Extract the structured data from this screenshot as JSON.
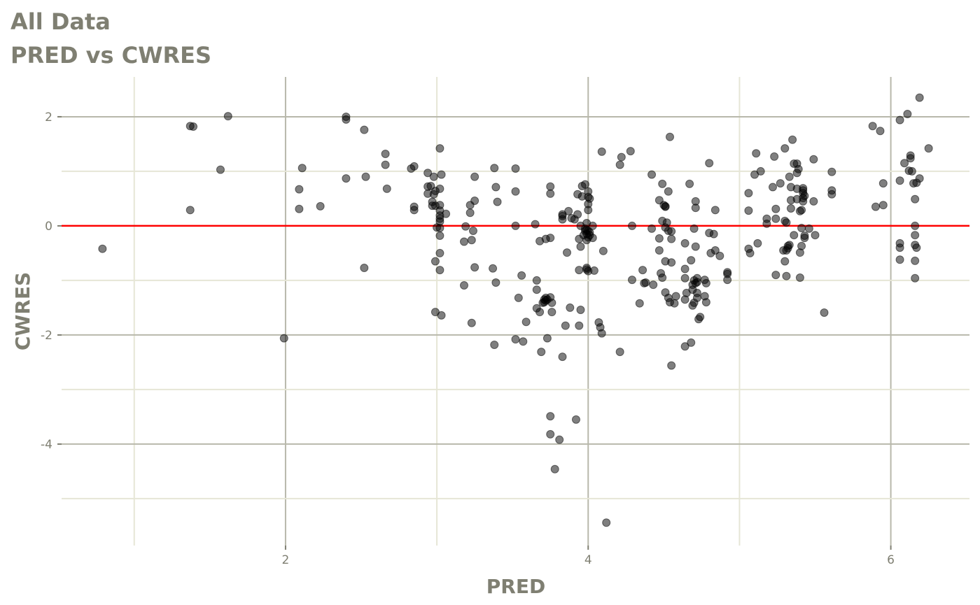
{
  "chart_data": {
    "type": "scatter",
    "title": "All Data",
    "subtitle": "PRED vs CWRES",
    "xlabel": "PRED",
    "ylabel": "CWRES",
    "xlim": [
      0.52,
      6.52
    ],
    "ylim": [
      -5.86,
      2.73
    ],
    "xticks": [
      2,
      4,
      6
    ],
    "yticks": [
      2,
      0,
      -2,
      -4
    ],
    "xtick_labels": [
      "2",
      "4",
      "6"
    ],
    "ytick_labels": [
      "2",
      "0",
      "-2",
      "-4"
    ],
    "grid": true,
    "reference_line": {
      "y": 0,
      "color": "#ff0000"
    },
    "colors": {
      "points": "#000000",
      "point_alpha": 0.5,
      "major_grid": "#b8b8ab",
      "minor_grid": "#e6e6d6",
      "text": "#7f7f72"
    },
    "points": [
      [
        0.79,
        -0.42
      ],
      [
        1.37,
        0.29
      ],
      [
        1.37,
        1.83
      ],
      [
        1.39,
        1.82
      ],
      [
        1.57,
        1.03
      ],
      [
        1.62,
        2.01
      ],
      [
        1.99,
        -2.06
      ],
      [
        2.09,
        0.67
      ],
      [
        2.09,
        0.31
      ],
      [
        2.11,
        1.06
      ],
      [
        2.23,
        0.36
      ],
      [
        2.4,
        0.87
      ],
      [
        2.4,
        1.95
      ],
      [
        2.4,
        2.0
      ],
      [
        2.52,
        -0.77
      ],
      [
        2.52,
        1.76
      ],
      [
        2.53,
        0.9
      ],
      [
        2.66,
        1.12
      ],
      [
        2.66,
        1.32
      ],
      [
        2.67,
        0.68
      ],
      [
        2.83,
        1.05
      ],
      [
        2.85,
        1.09
      ],
      [
        2.85,
        0.35
      ],
      [
        2.85,
        0.29
      ],
      [
        2.94,
        0.97
      ],
      [
        2.94,
        0.59
      ],
      [
        2.96,
        0.73
      ],
      [
        2.94,
        0.72
      ],
      [
        2.97,
        0.44
      ],
      [
        2.97,
        0.37
      ],
      [
        2.98,
        0.9
      ],
      [
        2.99,
        0.64
      ],
      [
        2.98,
        0.58
      ],
      [
        2.99,
        0.37
      ],
      [
        2.99,
        -0.65
      ],
      [
        2.99,
        -1.58
      ],
      [
        3.0,
        -0.03
      ],
      [
        3.02,
        0.38
      ],
      [
        3.02,
        0.28
      ],
      [
        3.02,
        0.19
      ],
      [
        3.02,
        0.13
      ],
      [
        3.02,
        0.08
      ],
      [
        3.02,
        -0.04
      ],
      [
        3.02,
        -0.18
      ],
      [
        3.02,
        -0.5
      ],
      [
        3.02,
        -0.81
      ],
      [
        3.02,
        1.42
      ],
      [
        3.02,
        0.68
      ],
      [
        3.03,
        0.94
      ],
      [
        3.03,
        -1.64
      ],
      [
        3.06,
        0.22
      ],
      [
        3.18,
        -1.09
      ],
      [
        3.18,
        -0.29
      ],
      [
        3.19,
        -0.01
      ],
      [
        3.22,
        0.24
      ],
      [
        3.22,
        0.38
      ],
      [
        3.23,
        -0.26
      ],
      [
        3.23,
        -1.78
      ],
      [
        3.24,
        -0.09
      ],
      [
        3.25,
        0.46
      ],
      [
        3.25,
        0.9
      ],
      [
        3.25,
        -0.76
      ],
      [
        3.37,
        -0.78
      ],
      [
        3.38,
        1.06
      ],
      [
        3.38,
        -2.18
      ],
      [
        3.39,
        0.71
      ],
      [
        3.39,
        -1.04
      ],
      [
        3.4,
        0.44
      ],
      [
        3.52,
        1.05
      ],
      [
        3.52,
        0.63
      ],
      [
        3.52,
        0.0
      ],
      [
        3.52,
        -2.08
      ],
      [
        3.54,
        -1.32
      ],
      [
        3.56,
        -0.91
      ],
      [
        3.57,
        -2.12
      ],
      [
        3.59,
        -1.76
      ],
      [
        3.65,
        0.03
      ],
      [
        3.66,
        -1.0
      ],
      [
        3.66,
        -1.17
      ],
      [
        3.66,
        -1.51
      ],
      [
        3.68,
        -1.58
      ],
      [
        3.68,
        -0.28
      ],
      [
        3.69,
        -2.31
      ],
      [
        3.71,
        -1.35
      ],
      [
        3.71,
        -1.4
      ],
      [
        3.7,
        -1.41
      ],
      [
        3.72,
        -1.32
      ],
      [
        3.72,
        -1.37
      ],
      [
        3.73,
        -1.35
      ],
      [
        3.72,
        -0.24
      ],
      [
        3.73,
        -2.06
      ],
      [
        3.75,
        0.72
      ],
      [
        3.75,
        0.59
      ],
      [
        3.75,
        -0.22
      ],
      [
        3.75,
        -1.31
      ],
      [
        3.76,
        -1.41
      ],
      [
        3.76,
        -1.58
      ],
      [
        3.75,
        -3.49
      ],
      [
        3.75,
        -3.82
      ],
      [
        3.78,
        -4.46
      ],
      [
        3.81,
        -3.92
      ],
      [
        3.83,
        0.18
      ],
      [
        3.83,
        0.12
      ],
      [
        3.83,
        0.21
      ],
      [
        3.83,
        -2.4
      ],
      [
        3.85,
        -1.83
      ],
      [
        3.86,
        -0.49
      ],
      [
        3.87,
        0.27
      ],
      [
        3.88,
        -1.5
      ],
      [
        3.89,
        0.14
      ],
      [
        3.91,
        0.12
      ],
      [
        3.92,
        -3.55
      ],
      [
        3.93,
        0.21
      ],
      [
        3.93,
        0.58
      ],
      [
        3.94,
        -0.24
      ],
      [
        3.94,
        -1.83
      ],
      [
        3.94,
        -0.81
      ],
      [
        3.95,
        -1.54
      ],
      [
        3.95,
        0.0
      ],
      [
        3.95,
        -0.38
      ],
      [
        3.96,
        0.54
      ],
      [
        3.96,
        0.73
      ],
      [
        3.97,
        -0.17
      ],
      [
        3.98,
        -0.09
      ],
      [
        3.98,
        -0.05
      ],
      [
        3.99,
        -0.08
      ],
      [
        4.0,
        -0.09
      ],
      [
        4.01,
        -0.12
      ],
      [
        3.99,
        -0.15
      ],
      [
        4.01,
        -0.17
      ],
      [
        4.0,
        -0.21
      ],
      [
        3.99,
        -0.26
      ],
      [
        3.98,
        0.76
      ],
      [
        3.99,
        -0.8
      ],
      [
        3.99,
        -0.77
      ],
      [
        4.0,
        -0.83
      ],
      [
        3.99,
        0.05
      ],
      [
        4.0,
        0.63
      ],
      [
        4.0,
        0.53
      ],
      [
        4.01,
        0.5
      ],
      [
        4.0,
        0.4
      ],
      [
        4.0,
        0.29
      ],
      [
        4.03,
        -0.22
      ],
      [
        4.03,
        0.0
      ],
      [
        4.04,
        -0.82
      ],
      [
        4.07,
        -1.77
      ],
      [
        4.08,
        -1.86
      ],
      [
        4.09,
        -1.97
      ],
      [
        4.09,
        1.36
      ],
      [
        4.1,
        -0.46
      ],
      [
        4.12,
        -5.44
      ],
      [
        4.21,
        1.12
      ],
      [
        4.21,
        -2.31
      ],
      [
        4.22,
        1.26
      ],
      [
        4.28,
        1.37
      ],
      [
        4.29,
        0.0
      ],
      [
        4.29,
        -0.99
      ],
      [
        4.34,
        -1.42
      ],
      [
        4.36,
        -0.81
      ],
      [
        4.37,
        -1.05
      ],
      [
        4.38,
        -1.04
      ],
      [
        4.42,
        0.94
      ],
      [
        4.42,
        -0.05
      ],
      [
        4.43,
        -1.08
      ],
      [
        4.47,
        0.47
      ],
      [
        4.47,
        -0.23
      ],
      [
        4.47,
        -0.45
      ],
      [
        4.48,
        -0.87
      ],
      [
        4.49,
        0.77
      ],
      [
        4.49,
        0.09
      ],
      [
        4.49,
        -0.95
      ],
      [
        4.5,
        0.38
      ],
      [
        4.51,
        0.35
      ],
      [
        4.51,
        0.36
      ],
      [
        4.51,
        -0.65
      ],
      [
        4.51,
        -0.03
      ],
      [
        4.51,
        -1.22
      ],
      [
        4.52,
        0.06
      ],
      [
        4.53,
        0.63
      ],
      [
        4.53,
        -1.32
      ],
      [
        4.53,
        -0.09
      ],
      [
        4.54,
        1.63
      ],
      [
        4.54,
        -1.4
      ],
      [
        4.55,
        -0.1
      ],
      [
        4.55,
        -0.67
      ],
      [
        4.55,
        -0.24
      ],
      [
        4.55,
        -2.56
      ],
      [
        4.57,
        -1.42
      ],
      [
        4.58,
        -1.29
      ],
      [
        4.64,
        -0.32
      ],
      [
        4.64,
        -0.79
      ],
      [
        4.64,
        -1.35
      ],
      [
        4.64,
        -2.21
      ],
      [
        4.64,
        -0.96
      ],
      [
        4.65,
        -1.23
      ],
      [
        4.67,
        0.77
      ],
      [
        4.68,
        -2.14
      ],
      [
        4.68,
        -0.63
      ],
      [
        4.69,
        -1.17
      ],
      [
        4.69,
        -1.08
      ],
      [
        4.7,
        -0.05
      ],
      [
        4.7,
        -1.41
      ],
      [
        4.69,
        -1.46
      ],
      [
        4.7,
        -1.0
      ],
      [
        4.71,
        -1.05
      ],
      [
        4.72,
        -1.03
      ],
      [
        4.71,
        0.33
      ],
      [
        4.71,
        0.45
      ],
      [
        4.71,
        -0.38
      ],
      [
        4.72,
        -1.32
      ],
      [
        4.72,
        -1.23
      ],
      [
        4.72,
        -0.96
      ],
      [
        4.73,
        -1.71
      ],
      [
        4.74,
        -1.67
      ],
      [
        4.77,
        -0.99
      ],
      [
        4.78,
        -1.05
      ],
      [
        4.77,
        -1.29
      ],
      [
        4.78,
        -1.4
      ],
      [
        4.8,
        1.15
      ],
      [
        4.8,
        -0.13
      ],
      [
        4.81,
        -0.5
      ],
      [
        4.83,
        -0.15
      ],
      [
        4.84,
        0.29
      ],
      [
        4.84,
        -0.45
      ],
      [
        4.87,
        -0.55
      ],
      [
        4.92,
        -0.85
      ],
      [
        4.92,
        -0.88
      ],
      [
        4.92,
        -0.99
      ],
      [
        5.06,
        -0.42
      ],
      [
        5.06,
        0.6
      ],
      [
        5.06,
        0.28
      ],
      [
        5.07,
        -0.5
      ],
      [
        5.1,
        0.94
      ],
      [
        5.11,
        1.33
      ],
      [
        5.12,
        -0.32
      ],
      [
        5.14,
        1.0
      ],
      [
        5.18,
        0.04
      ],
      [
        5.18,
        0.13
      ],
      [
        5.22,
        0.71
      ],
      [
        5.23,
        1.27
      ],
      [
        5.24,
        0.31
      ],
      [
        5.24,
        0.13
      ],
      [
        5.24,
        -0.9
      ],
      [
        5.27,
        0.78
      ],
      [
        5.29,
        -0.45
      ],
      [
        5.3,
        1.42
      ],
      [
        5.3,
        -0.65
      ],
      [
        5.3,
        0.09
      ],
      [
        5.31,
        0.06
      ],
      [
        5.31,
        -0.45
      ],
      [
        5.32,
        -0.41
      ],
      [
        5.32,
        -0.37
      ],
      [
        5.33,
        -0.35
      ],
      [
        5.31,
        -0.92
      ],
      [
        5.33,
        0.9
      ],
      [
        5.34,
        0.47
      ],
      [
        5.34,
        0.71
      ],
      [
        5.34,
        0.32
      ],
      [
        5.35,
        1.58
      ],
      [
        5.36,
        1.14
      ],
      [
        5.36,
        -0.17
      ],
      [
        5.38,
        0.68
      ],
      [
        5.38,
        0.49
      ],
      [
        5.38,
        1.14
      ],
      [
        5.39,
        1.04
      ],
      [
        5.38,
        0.97
      ],
      [
        5.4,
        0.27
      ],
      [
        5.4,
        -0.95
      ],
      [
        5.4,
        -0.49
      ],
      [
        5.41,
        -0.37
      ],
      [
        5.41,
        -0.04
      ],
      [
        5.41,
        0.29
      ],
      [
        5.42,
        0.69
      ],
      [
        5.42,
        0.65
      ],
      [
        5.42,
        0.6
      ],
      [
        5.43,
        0.55
      ],
      [
        5.42,
        0.51
      ],
      [
        5.42,
        0.45
      ],
      [
        5.43,
        -0.22
      ],
      [
        5.43,
        -0.18
      ],
      [
        5.46,
        -0.05
      ],
      [
        5.49,
        1.22
      ],
      [
        5.49,
        0.45
      ],
      [
        5.5,
        -0.17
      ],
      [
        5.56,
        -1.59
      ],
      [
        5.61,
        0.99
      ],
      [
        5.61,
        0.65
      ],
      [
        5.61,
        0.58
      ],
      [
        5.88,
        1.83
      ],
      [
        5.9,
        0.35
      ],
      [
        5.93,
        1.74
      ],
      [
        5.95,
        0.38
      ],
      [
        5.95,
        0.78
      ],
      [
        6.06,
        1.94
      ],
      [
        6.06,
        0.83
      ],
      [
        6.06,
        -0.32
      ],
      [
        6.06,
        -0.4
      ],
      [
        6.06,
        -0.62
      ],
      [
        6.09,
        1.15
      ],
      [
        6.11,
        2.05
      ],
      [
        6.12,
        1.01
      ],
      [
        6.13,
        1.29
      ],
      [
        6.13,
        1.24
      ],
      [
        6.14,
        1.0
      ],
      [
        6.15,
        0.78
      ],
      [
        6.16,
        0.49
      ],
      [
        6.16,
        0.0
      ],
      [
        6.16,
        -0.17
      ],
      [
        6.16,
        -0.35
      ],
      [
        6.16,
        -0.64
      ],
      [
        6.16,
        -0.96
      ],
      [
        6.17,
        0.79
      ],
      [
        6.17,
        -0.4
      ],
      [
        6.19,
        2.35
      ],
      [
        6.19,
        0.87
      ],
      [
        6.25,
        1.42
      ]
    ]
  }
}
